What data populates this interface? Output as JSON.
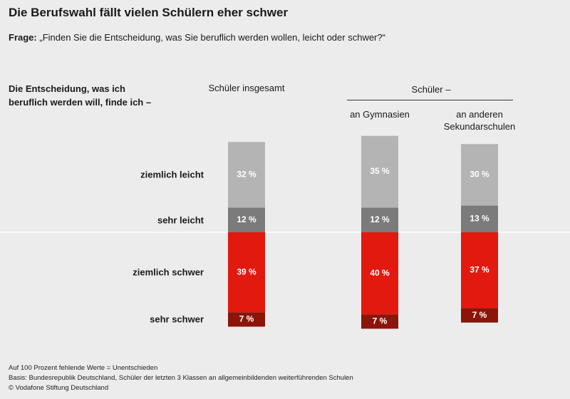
{
  "chart_data": {
    "type": "bar",
    "stack": "diverging",
    "title": "Die Berufswahl fällt vielen Schülern eher schwer",
    "question_label": "Frage:",
    "question": "„Finden Sie die Entscheidung, was Sie beruflich werden wollen, leicht oder schwer?“",
    "row_header": "Die Entscheidung, was ich beruflich werden will, finde ich –",
    "group_header": "Schüler –",
    "categories": [
      "Schüler insgesamt",
      "an Gymnasien",
      "an anderen Sekundarschulen"
    ],
    "series": [
      {
        "name": "sehr leicht",
        "color": "#7b7b7b",
        "side": "up",
        "values": [
          12,
          12,
          13
        ],
        "value_labels": [
          "12 %",
          "12 %",
          "13 %"
        ]
      },
      {
        "name": "ziemlich leicht",
        "color": "#b4b4b4",
        "side": "up",
        "values": [
          32,
          35,
          30
        ],
        "value_labels": [
          "32 %",
          "35 %",
          "30 %"
        ]
      },
      {
        "name": "ziemlich schwer",
        "color": "#e2190f",
        "side": "down",
        "values": [
          39,
          40,
          37
        ],
        "value_labels": [
          "39 %",
          "40 %",
          "37 %"
        ]
      },
      {
        "name": "sehr schwer",
        "color": "#8a1508",
        "side": "down",
        "values": [
          7,
          7,
          7
        ],
        "value_labels": [
          "7 %",
          "7 %",
          "7 %"
        ]
      }
    ],
    "notes": [
      "Auf 100 Prozent fehlende Werte = Unentschieden",
      "Basis: Bundesrepublik Deutschland, Schüler der letzten 3 Klassen an allgemeinbildenden weiterführenden Schulen",
      "© Vodafone Stiftung Deutschland"
    ]
  }
}
